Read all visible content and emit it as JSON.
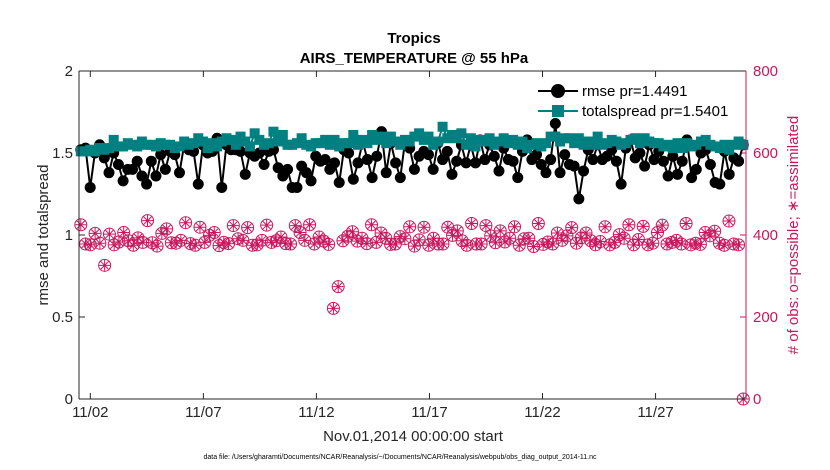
{
  "chart_data": {
    "type": "line",
    "title": "Tropics",
    "subtitle": "AIRS_TEMPERATURE @ 55 hPa",
    "xlabel": "Nov.01,2014 00:00:00 start",
    "ylabel": "rmse and totalspread",
    "y2label": "# of obs: o=possible; ∗=assimilated",
    "footnote": "data file: /Users/gharamti/Documents/NCAR/Reanalysis/~/Documents/NCAR/Reanalysis/webpub/obs_diag_output_2014-11.nc",
    "xlim": [
      1.5,
      31.0
    ],
    "ylim": [
      0,
      2
    ],
    "y2lim": [
      0,
      800
    ],
    "xticks": [
      {
        "value": 2,
        "label": "11/02"
      },
      {
        "value": 7,
        "label": "11/07"
      },
      {
        "value": 12,
        "label": "11/12"
      },
      {
        "value": 17,
        "label": "11/17"
      },
      {
        "value": 22,
        "label": "11/22"
      },
      {
        "value": 27,
        "label": "11/27"
      }
    ],
    "yticks": [
      {
        "value": 0,
        "label": "0"
      },
      {
        "value": 0.5,
        "label": "0.5"
      },
      {
        "value": 1,
        "label": "1"
      },
      {
        "value": 1.5,
        "label": "1.5"
      },
      {
        "value": 2,
        "label": "2"
      }
    ],
    "y2ticks": [
      {
        "value": 0,
        "label": "0"
      },
      {
        "value": 200,
        "label": "200"
      },
      {
        "value": 400,
        "label": "400"
      },
      {
        "value": 600,
        "label": "600"
      },
      {
        "value": 800,
        "label": "800"
      }
    ],
    "legend_position": "top-right",
    "series": [
      {
        "name": "rmse",
        "label": "rmse pr=1.4491",
        "axis": "left",
        "color": "#000000",
        "marker": "circle",
        "values": [
          1.52,
          1.53,
          1.29,
          1.5,
          1.55,
          1.47,
          1.38,
          1.5,
          1.43,
          1.33,
          1.4,
          1.4,
          1.45,
          1.36,
          1.31,
          1.45,
          1.36,
          1.49,
          1.4,
          1.51,
          1.49,
          1.38,
          1.55,
          1.52,
          1.51,
          1.31,
          1.55,
          1.5,
          1.51,
          1.59,
          1.29,
          1.55,
          1.52,
          1.52,
          1.51,
          1.37,
          1.5,
          1.48,
          1.5,
          1.43,
          1.51,
          1.52,
          1.41,
          1.36,
          1.4,
          1.29,
          1.29,
          1.42,
          1.38,
          1.33,
          1.48,
          1.45,
          1.46,
          1.4,
          1.44,
          1.32,
          1.52,
          1.5,
          1.34,
          1.44,
          1.57,
          1.46,
          1.35,
          1.48,
          1.63,
          1.38,
          1.56,
          1.44,
          1.35,
          1.57,
          1.53,
          1.4,
          1.48,
          1.51,
          1.49,
          1.4,
          1.56,
          1.46,
          1.51,
          1.37,
          1.45,
          1.55,
          1.44,
          1.55,
          1.44,
          1.58,
          1.46,
          1.55,
          1.48,
          1.39,
          1.53,
          1.46,
          1.45,
          1.35,
          1.51,
          1.58,
          1.46,
          1.49,
          1.43,
          1.38,
          1.46,
          1.68,
          1.38,
          1.49,
          1.43,
          1.42,
          1.22,
          1.39,
          1.52,
          1.46,
          1.55,
          1.46,
          1.48,
          1.52,
          1.45,
          1.31,
          1.53,
          1.58,
          1.47,
          1.5,
          1.42,
          1.55,
          1.46,
          1.51,
          1.45,
          1.36,
          1.48,
          1.37,
          1.45,
          1.58,
          1.35,
          1.4,
          1.5,
          1.52,
          1.43,
          1.32,
          1.31,
          1.51,
          1.37,
          1.47,
          1.45,
          1.55
        ]
      },
      {
        "name": "totalspread",
        "label": "totalspread pr=1.5401",
        "axis": "left",
        "color": "#008080",
        "marker": "square",
        "values": [
          1.51,
          1.51,
          1.52,
          1.51,
          1.53,
          1.52,
          1.53,
          1.58,
          1.54,
          1.54,
          1.56,
          1.55,
          1.54,
          1.57,
          1.55,
          1.55,
          1.54,
          1.56,
          1.55,
          1.55,
          1.53,
          1.54,
          1.57,
          1.55,
          1.56,
          1.59,
          1.57,
          1.53,
          1.56,
          1.54,
          1.57,
          1.59,
          1.58,
          1.55,
          1.6,
          1.57,
          1.54,
          1.62,
          1.58,
          1.55,
          1.56,
          1.63,
          1.57,
          1.61,
          1.55,
          1.55,
          1.56,
          1.59,
          1.55,
          1.54,
          1.56,
          1.56,
          1.58,
          1.55,
          1.58,
          1.54,
          1.56,
          1.56,
          1.61,
          1.55,
          1.58,
          1.56,
          1.61,
          1.58,
          1.6,
          1.56,
          1.6,
          1.57,
          1.55,
          1.58,
          1.57,
          1.6,
          1.62,
          1.58,
          1.6,
          1.55,
          1.57,
          1.66,
          1.59,
          1.61,
          1.59,
          1.62,
          1.55,
          1.59,
          1.54,
          1.58,
          1.57,
          1.59,
          1.55,
          1.57,
          1.59,
          1.56,
          1.58,
          1.55,
          1.57,
          1.53,
          1.55,
          1.56,
          1.54,
          1.56,
          1.6,
          1.6,
          1.57,
          1.59,
          1.59,
          1.56,
          1.59,
          1.55,
          1.57,
          1.55,
          1.6,
          1.55,
          1.56,
          1.58,
          1.57,
          1.55,
          1.56,
          1.58,
          1.59,
          1.56,
          1.59,
          1.57,
          1.56,
          1.56,
          1.54,
          1.55,
          1.53,
          1.56,
          1.53,
          1.56,
          1.54,
          1.55,
          1.57,
          1.58,
          1.55,
          1.54,
          1.53,
          1.55,
          1.52,
          1.55,
          1.57,
          1.55
        ]
      },
      {
        "name": "obs_possible",
        "label": "o=possible",
        "axis": "right",
        "color": "#c8175e",
        "marker": "circle-open",
        "values": [
          425,
          378,
          376,
          404,
          380,
          326,
          402,
          376,
          383,
          406,
          386,
          375,
          393,
          382,
          435,
          381,
          373,
          404,
          415,
          381,
          380,
          387,
          430,
          379,
          375,
          419,
          382,
          399,
          406,
          374,
          382,
          379,
          423,
          391,
          387,
          418,
          375,
          376,
          387,
          424,
          382,
          386,
          395,
          379,
          378,
          423,
          406,
          387,
          425,
          378,
          395,
          385,
          377,
          221,
          274,
          386,
          397,
          408,
          385,
          392,
          379,
          425,
          382,
          405,
          392,
          377,
          378,
          396,
          391,
          420,
          373,
          388,
          419,
          375,
          392,
          378,
          378,
          419,
          399,
          410,
          386,
          375,
          428,
          378,
          378,
          423,
          398,
          381,
          410,
          383,
          392,
          420,
          375,
          391,
          392,
          372,
          428,
          377,
          383,
          378,
          405,
          387,
          398,
          418,
          380,
          393,
          405,
          386,
          376,
          384,
          420,
          376,
          382,
          401,
          392,
          425,
          376,
          389,
          421,
          376,
          380,
          406,
          424,
          378,
          382,
          387,
          378,
          428,
          376,
          380,
          377,
          406,
          398,
          409,
          380,
          375,
          434,
          378,
          376,
          0
        ]
      },
      {
        "name": "obs_assimilated",
        "label": "∗=assimilated",
        "axis": "right",
        "color": "#c8175e",
        "marker": "asterisk",
        "values": [
          425,
          378,
          376,
          404,
          380,
          326,
          402,
          376,
          383,
          406,
          386,
          375,
          393,
          382,
          435,
          381,
          373,
          404,
          415,
          381,
          380,
          387,
          430,
          379,
          375,
          419,
          382,
          399,
          406,
          374,
          382,
          379,
          423,
          391,
          387,
          418,
          375,
          376,
          387,
          424,
          382,
          386,
          395,
          379,
          378,
          423,
          406,
          387,
          425,
          378,
          395,
          385,
          377,
          221,
          274,
          386,
          397,
          408,
          385,
          392,
          379,
          425,
          382,
          405,
          392,
          377,
          378,
          396,
          391,
          420,
          373,
          388,
          419,
          375,
          392,
          378,
          378,
          419,
          399,
          410,
          386,
          375,
          428,
          378,
          378,
          423,
          398,
          381,
          410,
          383,
          392,
          420,
          375,
          391,
          392,
          372,
          428,
          377,
          383,
          378,
          405,
          387,
          398,
          418,
          380,
          393,
          405,
          386,
          376,
          384,
          420,
          376,
          382,
          401,
          392,
          425,
          376,
          389,
          421,
          376,
          380,
          406,
          424,
          378,
          382,
          387,
          378,
          428,
          376,
          380,
          377,
          406,
          398,
          409,
          380,
          375,
          434,
          378,
          376,
          0
        ]
      }
    ]
  }
}
